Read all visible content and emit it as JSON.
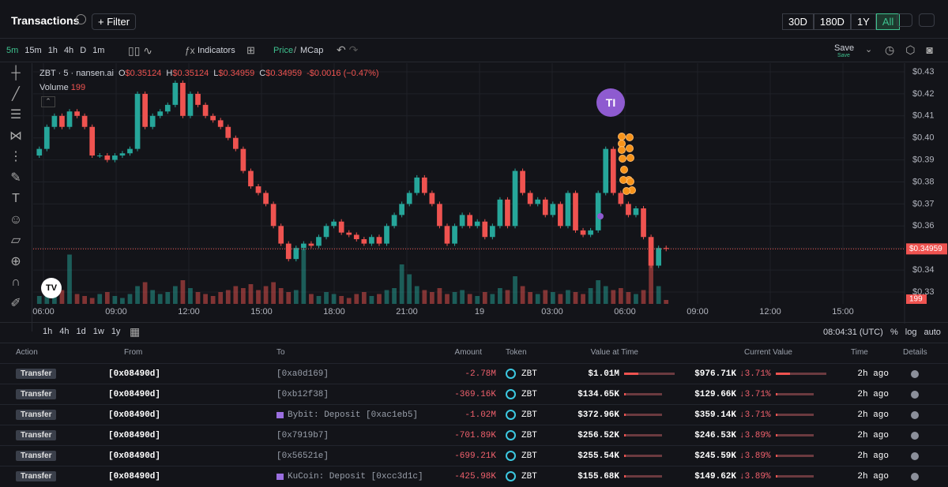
{
  "header": {
    "title": "Transactions",
    "filter": "+ Filter",
    "ranges": [
      "30D",
      "180D",
      "1Y",
      "All"
    ]
  },
  "toolbar": {
    "intervals": [
      "5m",
      "15m",
      "1h",
      "4h",
      "D",
      "1m"
    ],
    "indicators": "Indicators",
    "price": "Price",
    "mcap": "MCap",
    "save": "Save",
    "save_sub": "Save"
  },
  "legend": {
    "symbol": "ZBT · 5 · nansen.ai",
    "ohlc": [
      {
        "key": "O",
        "text": "$0.35124"
      },
      {
        "key": "H",
        "text": "$0.35124"
      },
      {
        "key": "L",
        "text": "$0.34959"
      },
      {
        "key": "C",
        "text": "$0.34959"
      }
    ],
    "change": "-$0.0016 (−0.47%)",
    "volume_label": "Volume",
    "last_label": "$0.34959",
    "avatar": "TI"
  },
  "chart_data": {
    "type": "candlestick",
    "open": 0.392,
    "values": [
      0.395,
      0.405,
      0.41,
      0.405,
      0.412,
      0.41,
      0.405,
      0.392,
      0.392,
      0.39,
      0.392,
      0.393,
      0.395,
      0.42,
      0.405,
      0.41,
      0.412,
      0.415,
      0.425,
      0.41,
      0.42,
      0.415,
      0.41,
      0.408,
      0.405,
      0.4,
      0.395,
      0.385,
      0.378,
      0.375,
      0.37,
      0.36,
      0.352,
      0.345,
      0.35,
      0.352,
      0.351,
      0.355,
      0.36,
      0.362,
      0.357,
      0.356,
      0.354,
      0.352,
      0.355,
      0.352,
      0.36,
      0.365,
      0.37,
      0.375,
      0.382,
      0.375,
      0.37,
      0.36,
      0.352,
      0.36,
      0.365,
      0.36,
      0.362,
      0.355,
      0.36,
      0.372,
      0.36,
      0.385,
      0.375,
      0.37,
      0.372,
      0.365,
      0.37,
      0.36,
      0.375,
      0.358,
      0.356,
      0.358,
      0.375,
      0.395,
      0.375,
      0.37,
      0.365,
      0.368,
      0.355,
      0.342,
      0.35,
      0.34959
    ],
    "volume": [
      400,
      600,
      500,
      700,
      2500,
      500,
      400,
      300,
      500,
      600,
      400,
      300,
      500,
      900,
      1100,
      700,
      500,
      600,
      900,
      1200,
      800,
      600,
      500,
      400,
      600,
      700,
      900,
      800,
      1000,
      700,
      900,
      1100,
      800,
      600,
      700,
      2800,
      500,
      400,
      600,
      500,
      400,
      300,
      500,
      600,
      400,
      500,
      700,
      800,
      2000,
      1500,
      900,
      700,
      600,
      800,
      500,
      600,
      700,
      500,
      400,
      600,
      500,
      800,
      700,
      1400,
      900,
      600,
      500,
      700,
      600,
      500,
      700,
      600,
      500,
      800,
      1200,
      900,
      700,
      800,
      600,
      500,
      700,
      2000,
      900,
      199
    ],
    "ylim": [
      0.33,
      0.43
    ],
    "yticks": [
      {
        "value": 0.43,
        "label": "$0.43"
      },
      {
        "value": 0.42,
        "label": "$0.42"
      },
      {
        "value": 0.41,
        "label": "$0.41"
      },
      {
        "value": 0.4,
        "label": "$0.40"
      },
      {
        "value": 0.39,
        "label": "$0.39"
      },
      {
        "value": 0.38,
        "label": "$0.38"
      },
      {
        "value": 0.37,
        "label": "$0.37"
      },
      {
        "value": 0.36,
        "label": "$0.36"
      },
      {
        "value": 0.35,
        "label": "$0.35"
      },
      {
        "value": 0.34,
        "label": "$0.34"
      },
      {
        "value": 0.33,
        "label": "$0.33"
      }
    ],
    "time_ticks": [
      "06:00",
      "09:00",
      "12:00",
      "15:00",
      "18:00",
      "21:00",
      "19",
      "03:00",
      "06:00",
      "09:00",
      "12:00",
      "15:00"
    ],
    "up_color": "#26a69a",
    "down_color": "#ef5350",
    "grid": true
  },
  "rangebar": {
    "ranges": [
      "1h",
      "4h",
      "1d",
      "1w",
      "1y"
    ],
    "clock": "08:04:31 (UTC)",
    "scales": [
      "%",
      "log",
      "auto"
    ]
  },
  "table": {
    "columns": [
      "Action",
      "From",
      "To",
      "Amount",
      "Token",
      "Value at Time",
      "Current Value",
      "Time",
      "Details"
    ],
    "rows": [
      [
        "Transfer",
        "[0x08490d]",
        "[0xa0d169]",
        "-2.78M",
        "ZBT",
        "$1.01M",
        "$976.71K",
        "↓3.71%",
        "2h ago"
      ],
      [
        "Transfer",
        "[0x08490d]",
        "[0xb12f38]",
        "-369.16K",
        "ZBT",
        "$134.65K",
        "$129.66K",
        "↓3.71%",
        "2h ago"
      ],
      [
        "Transfer",
        "[0x08490d]",
        "Bybit: Deposit [0xac1eb5]",
        "-1.02M",
        "ZBT",
        "$372.96K",
        "$359.14K",
        "↓3.71%",
        "2h ago"
      ],
      [
        "Transfer",
        "[0x08490d]",
        "[0x7919b7]",
        "-701.89K",
        "ZBT",
        "$256.52K",
        "$246.53K",
        "↓3.89%",
        "2h ago"
      ],
      [
        "Transfer",
        "[0x08490d]",
        "[0x56521e]",
        "-699.21K",
        "ZBT",
        "$255.54K",
        "$245.59K",
        "↓3.89%",
        "2h ago"
      ],
      [
        "Transfer",
        "[0x08490d]",
        "KuCoin: Deposit [0xcc3d1c]",
        "-425.98K",
        "ZBT",
        "$155.68K",
        "$149.62K",
        "↓3.89%",
        "2h ago"
      ]
    ]
  }
}
